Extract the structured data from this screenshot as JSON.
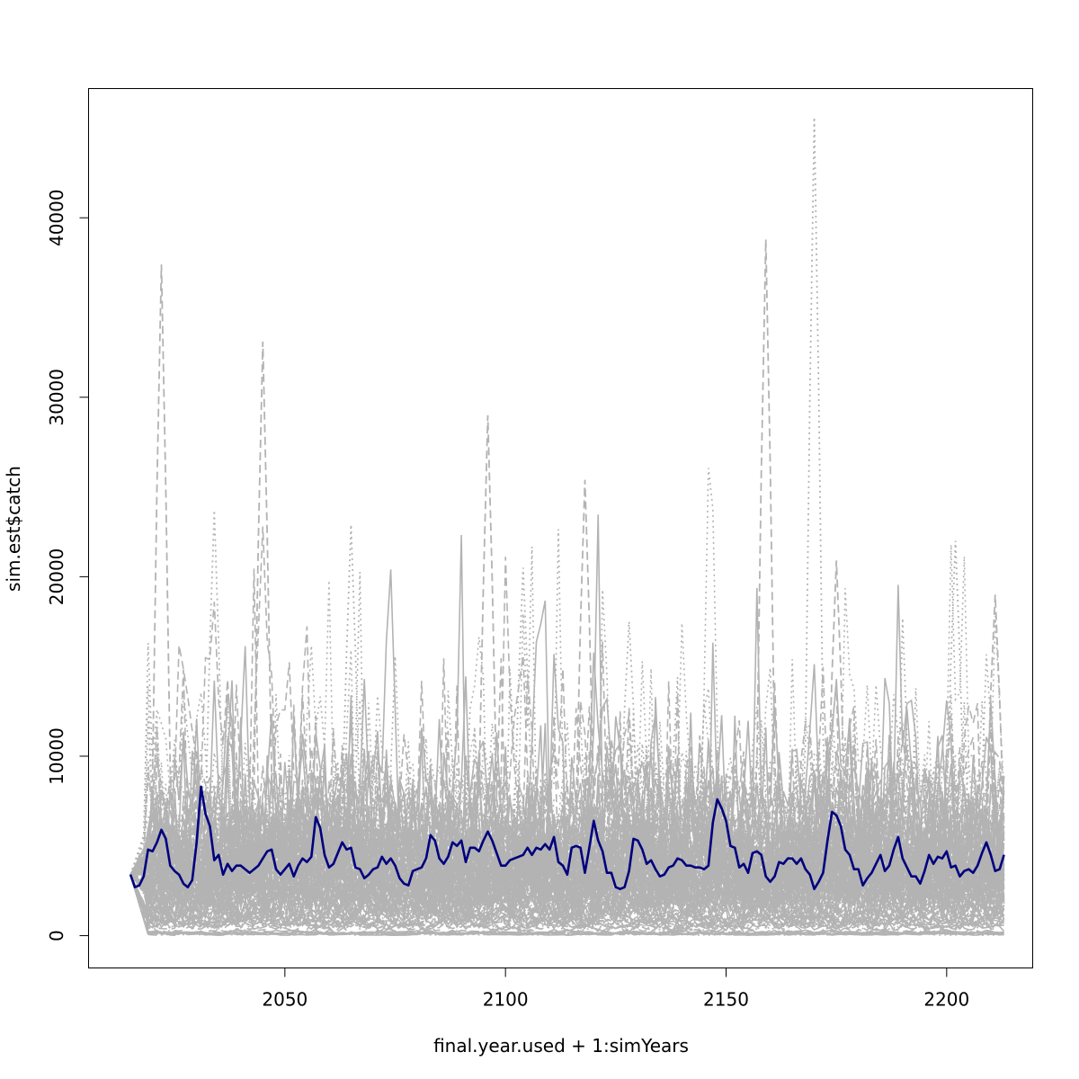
{
  "chart_data": {
    "type": "line",
    "title": "",
    "xlabel": "final.year.used + 1:simYears",
    "ylabel": "sim.est$catch",
    "xlim": [
      2005.5,
      2219.5
    ],
    "ylim": [
      -1800,
      47200
    ],
    "x_start": 2015,
    "x_end": 2213,
    "x_ticks": [
      {
        "value": 2050,
        "label": "2050"
      },
      {
        "value": 2100,
        "label": "2100"
      },
      {
        "value": 2150,
        "label": "2150"
      },
      {
        "value": 2200,
        "label": "2200"
      }
    ],
    "y_ticks": [
      {
        "value": 0,
        "label": "0"
      },
      {
        "value": 10000,
        "label": "10000"
      },
      {
        "value": 20000,
        "label": "20000"
      },
      {
        "value": 30000,
        "label": "30000"
      },
      {
        "value": 40000,
        "label": "40000"
      }
    ],
    "grid": false,
    "legend": "none",
    "colors": {
      "simulations": "#b3b3b3",
      "highlight": "#00007f",
      "axis": "#000000"
    },
    "background_simulations": {
      "count": 120,
      "typical_range": [
        1000,
        7000
      ],
      "note_peaks": [
        {
          "x": 2022,
          "y": 37400
        },
        {
          "x": 2034,
          "y": 23700
        },
        {
          "x": 2045,
          "y": 33100
        },
        {
          "x": 2065,
          "y": 22900
        },
        {
          "x": 2096,
          "y": 29000
        },
        {
          "x": 2104,
          "y": 20500
        },
        {
          "x": 2118,
          "y": 25400
        },
        {
          "x": 2128,
          "y": 17500
        },
        {
          "x": 2159,
          "y": 38800
        },
        {
          "x": 2170,
          "y": 45600
        },
        {
          "x": 2175,
          "y": 20900
        },
        {
          "x": 2202,
          "y": 22000
        },
        {
          "x": 2211,
          "y": 19000
        }
      ]
    },
    "series": [
      {
        "name": "",
        "style": "solid",
        "values": [
          [
            2015,
            3400
          ],
          [
            2016,
            2700
          ],
          [
            2017,
            2800
          ],
          [
            2018,
            3300
          ],
          [
            2019,
            4800
          ],
          [
            2020,
            4700
          ],
          [
            2021,
            5200
          ],
          [
            2022,
            5900
          ],
          [
            2023,
            5400
          ],
          [
            2024,
            3900
          ],
          [
            2025,
            3600
          ],
          [
            2026,
            3400
          ],
          [
            2027,
            2900
          ],
          [
            2028,
            2700
          ],
          [
            2029,
            3100
          ],
          [
            2030,
            5200
          ],
          [
            2031,
            8300
          ],
          [
            2032,
            6800
          ],
          [
            2033,
            6100
          ],
          [
            2034,
            4200
          ],
          [
            2035,
            4500
          ],
          [
            2036,
            3400
          ],
          [
            2037,
            4000
          ],
          [
            2038,
            3600
          ],
          [
            2039,
            3900
          ],
          [
            2040,
            3900
          ],
          [
            2041,
            3700
          ],
          [
            2042,
            3500
          ],
          [
            2043,
            3700
          ],
          [
            2044,
            3900
          ],
          [
            2045,
            4300
          ],
          [
            2046,
            4700
          ],
          [
            2047,
            4800
          ],
          [
            2048,
            3700
          ],
          [
            2049,
            3400
          ],
          [
            2050,
            3700
          ],
          [
            2051,
            4000
          ],
          [
            2052,
            3300
          ],
          [
            2053,
            3900
          ],
          [
            2054,
            4300
          ],
          [
            2055,
            4100
          ],
          [
            2056,
            4400
          ],
          [
            2057,
            6600
          ],
          [
            2058,
            6000
          ],
          [
            2059,
            4500
          ],
          [
            2060,
            3800
          ],
          [
            2061,
            4000
          ],
          [
            2062,
            4600
          ],
          [
            2063,
            5200
          ],
          [
            2064,
            4800
          ],
          [
            2065,
            4900
          ],
          [
            2066,
            3800
          ],
          [
            2067,
            3700
          ],
          [
            2068,
            3200
          ],
          [
            2069,
            3400
          ],
          [
            2070,
            3700
          ],
          [
            2071,
            3800
          ],
          [
            2072,
            4400
          ],
          [
            2073,
            4000
          ],
          [
            2074,
            4300
          ],
          [
            2075,
            3900
          ],
          [
            2076,
            3200
          ],
          [
            2077,
            2900
          ],
          [
            2078,
            2800
          ],
          [
            2079,
            3600
          ],
          [
            2080,
            3700
          ],
          [
            2081,
            3800
          ],
          [
            2082,
            4300
          ],
          [
            2083,
            5600
          ],
          [
            2084,
            5300
          ],
          [
            2085,
            4300
          ],
          [
            2086,
            4000
          ],
          [
            2087,
            4400
          ],
          [
            2088,
            5200
          ],
          [
            2089,
            5000
          ],
          [
            2090,
            5300
          ],
          [
            2091,
            4100
          ],
          [
            2092,
            4900
          ],
          [
            2093,
            4900
          ],
          [
            2094,
            4700
          ],
          [
            2095,
            5300
          ],
          [
            2096,
            5800
          ],
          [
            2097,
            5300
          ],
          [
            2098,
            4600
          ],
          [
            2099,
            3900
          ],
          [
            2100,
            3900
          ],
          [
            2101,
            4200
          ],
          [
            2102,
            4300
          ],
          [
            2103,
            4400
          ],
          [
            2104,
            4500
          ],
          [
            2105,
            4900
          ],
          [
            2106,
            4500
          ],
          [
            2107,
            4900
          ],
          [
            2108,
            4800
          ],
          [
            2109,
            5100
          ],
          [
            2110,
            4800
          ],
          [
            2111,
            5500
          ],
          [
            2112,
            4100
          ],
          [
            2113,
            3900
          ],
          [
            2114,
            3400
          ],
          [
            2115,
            4900
          ],
          [
            2116,
            5000
          ],
          [
            2117,
            4900
          ],
          [
            2118,
            3500
          ],
          [
            2119,
            4900
          ],
          [
            2120,
            6400
          ],
          [
            2121,
            5300
          ],
          [
            2122,
            4700
          ],
          [
            2123,
            3500
          ],
          [
            2124,
            3500
          ],
          [
            2125,
            2700
          ],
          [
            2126,
            2600
          ],
          [
            2127,
            2700
          ],
          [
            2128,
            3600
          ],
          [
            2129,
            5400
          ],
          [
            2130,
            5300
          ],
          [
            2131,
            4800
          ],
          [
            2132,
            4000
          ],
          [
            2133,
            4200
          ],
          [
            2134,
            3700
          ],
          [
            2135,
            3300
          ],
          [
            2136,
            3400
          ],
          [
            2137,
            3800
          ],
          [
            2138,
            3900
          ],
          [
            2139,
            4300
          ],
          [
            2140,
            4200
          ],
          [
            2141,
            3900
          ],
          [
            2142,
            3900
          ],
          [
            2143,
            3800
          ],
          [
            2144,
            3800
          ],
          [
            2145,
            3700
          ],
          [
            2146,
            3900
          ],
          [
            2147,
            6300
          ],
          [
            2148,
            7600
          ],
          [
            2149,
            7100
          ],
          [
            2150,
            6400
          ],
          [
            2151,
            5000
          ],
          [
            2152,
            4900
          ],
          [
            2153,
            3800
          ],
          [
            2154,
            4000
          ],
          [
            2155,
            3500
          ],
          [
            2156,
            4600
          ],
          [
            2157,
            4700
          ],
          [
            2158,
            4500
          ],
          [
            2159,
            3300
          ],
          [
            2160,
            3000
          ],
          [
            2161,
            3300
          ],
          [
            2162,
            4100
          ],
          [
            2163,
            4000
          ],
          [
            2164,
            4300
          ],
          [
            2165,
            4300
          ],
          [
            2166,
            4000
          ],
          [
            2167,
            4300
          ],
          [
            2168,
            3700
          ],
          [
            2169,
            3400
          ],
          [
            2170,
            2600
          ],
          [
            2171,
            3000
          ],
          [
            2172,
            3500
          ],
          [
            2173,
            5300
          ],
          [
            2174,
            6900
          ],
          [
            2175,
            6700
          ],
          [
            2176,
            6100
          ],
          [
            2177,
            4800
          ],
          [
            2178,
            4500
          ],
          [
            2179,
            3700
          ],
          [
            2180,
            3700
          ],
          [
            2181,
            2800
          ],
          [
            2182,
            3200
          ],
          [
            2183,
            3500
          ],
          [
            2184,
            4000
          ],
          [
            2185,
            4500
          ],
          [
            2186,
            3600
          ],
          [
            2187,
            3900
          ],
          [
            2188,
            4800
          ],
          [
            2189,
            5500
          ],
          [
            2190,
            4300
          ],
          [
            2191,
            3800
          ],
          [
            2192,
            3300
          ],
          [
            2193,
            3300
          ],
          [
            2194,
            2900
          ],
          [
            2195,
            3600
          ],
          [
            2196,
            4500
          ],
          [
            2197,
            4000
          ],
          [
            2198,
            4400
          ],
          [
            2199,
            4300
          ],
          [
            2200,
            4700
          ],
          [
            2201,
            3800
          ],
          [
            2202,
            3900
          ],
          [
            2203,
            3300
          ],
          [
            2204,
            3600
          ],
          [
            2205,
            3700
          ],
          [
            2206,
            3500
          ],
          [
            2207,
            3900
          ],
          [
            2208,
            4600
          ],
          [
            2209,
            5200
          ],
          [
            2210,
            4500
          ],
          [
            2211,
            3600
          ],
          [
            2212,
            3700
          ],
          [
            2213,
            4500
          ]
        ]
      }
    ]
  }
}
